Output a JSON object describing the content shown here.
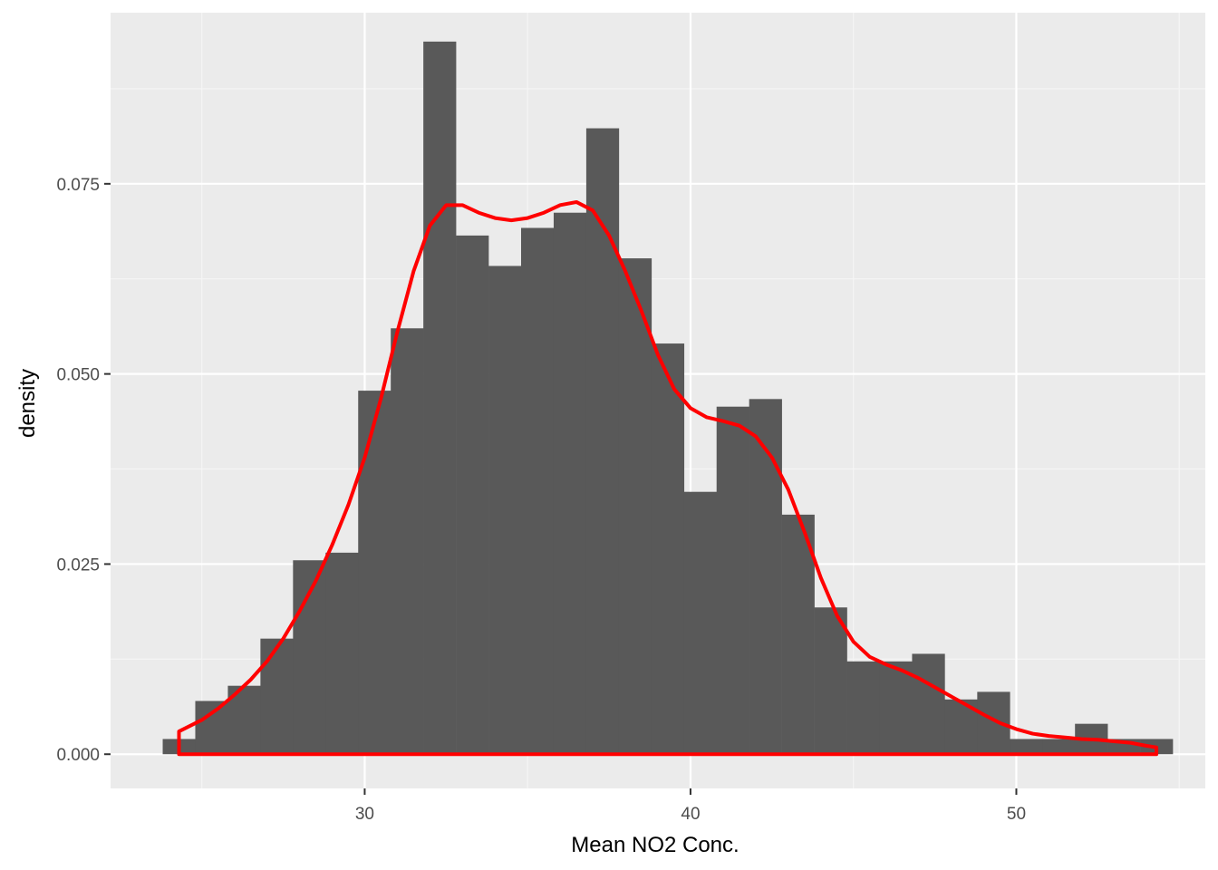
{
  "chart_data": {
    "type": "bar",
    "overlay": "density-line",
    "xlabel": "Mean NO2 Conc.",
    "ylabel": "density",
    "xlim": [
      22.2,
      55.8
    ],
    "ylim": [
      -0.0045,
      0.0975
    ],
    "x_ticks": [
      30,
      40,
      50
    ],
    "x_tick_labels": [
      "30",
      "40",
      "50"
    ],
    "x_minor_ticks": [
      25,
      35,
      45,
      55
    ],
    "y_ticks": [
      0.0,
      0.025,
      0.05,
      0.075
    ],
    "y_tick_labels": [
      "0.000",
      "0.025",
      "0.050",
      "0.075"
    ],
    "y_minor_ticks": [
      0.0125,
      0.0375,
      0.0625,
      0.0875
    ],
    "bin_width": 1.0,
    "bins": [
      {
        "x": 24.3,
        "density": 0.002
      },
      {
        "x": 25.3,
        "density": 0.007
      },
      {
        "x": 26.3,
        "density": 0.009
      },
      {
        "x": 27.3,
        "density": 0.0152
      },
      {
        "x": 28.3,
        "density": 0.0255
      },
      {
        "x": 29.3,
        "density": 0.0265
      },
      {
        "x": 30.3,
        "density": 0.0478
      },
      {
        "x": 31.3,
        "density": 0.056
      },
      {
        "x": 32.3,
        "density": 0.0937
      },
      {
        "x": 33.3,
        "density": 0.0682
      },
      {
        "x": 34.3,
        "density": 0.0642
      },
      {
        "x": 35.3,
        "density": 0.0692
      },
      {
        "x": 36.3,
        "density": 0.0712
      },
      {
        "x": 37.3,
        "density": 0.0823
      },
      {
        "x": 38.3,
        "density": 0.0652
      },
      {
        "x": 39.3,
        "density": 0.054
      },
      {
        "x": 40.3,
        "density": 0.0345
      },
      {
        "x": 41.3,
        "density": 0.0457
      },
      {
        "x": 42.3,
        "density": 0.0467
      },
      {
        "x": 43.3,
        "density": 0.0315
      },
      {
        "x": 44.3,
        "density": 0.0193
      },
      {
        "x": 45.3,
        "density": 0.0122
      },
      {
        "x": 46.3,
        "density": 0.0122
      },
      {
        "x": 47.3,
        "density": 0.0132
      },
      {
        "x": 48.3,
        "density": 0.0072
      },
      {
        "x": 49.3,
        "density": 0.0082
      },
      {
        "x": 50.3,
        "density": 0.002
      },
      {
        "x": 51.3,
        "density": 0.002
      },
      {
        "x": 52.3,
        "density": 0.004
      },
      {
        "x": 53.3,
        "density": 0.002
      },
      {
        "x": 54.3,
        "density": 0.002
      }
    ],
    "density_curve": {
      "x": [
        24.3,
        25.0,
        25.5,
        26.0,
        26.5,
        27.0,
        27.5,
        28.0,
        28.5,
        29.0,
        29.5,
        30.0,
        30.5,
        31.0,
        31.5,
        32.0,
        32.5,
        33.0,
        33.5,
        34.0,
        34.5,
        35.0,
        35.5,
        36.0,
        36.5,
        37.0,
        37.5,
        38.0,
        38.5,
        39.0,
        39.5,
        40.0,
        40.5,
        41.0,
        41.5,
        42.0,
        42.5,
        43.0,
        43.5,
        44.0,
        44.5,
        45.0,
        45.5,
        46.0,
        46.5,
        47.0,
        47.5,
        48.0,
        48.5,
        49.0,
        49.5,
        50.0,
        50.5,
        51.0,
        51.5,
        52.0,
        52.5,
        53.0,
        53.5,
        54.0,
        54.3
      ],
      "y": [
        0.003,
        0.0045,
        0.006,
        0.0078,
        0.0098,
        0.0122,
        0.0152,
        0.0188,
        0.0228,
        0.0275,
        0.0328,
        0.039,
        0.0468,
        0.0555,
        0.0635,
        0.0695,
        0.0722,
        0.0722,
        0.0712,
        0.0705,
        0.0702,
        0.0705,
        0.0712,
        0.0722,
        0.0726,
        0.0715,
        0.0682,
        0.0635,
        0.0582,
        0.0525,
        0.048,
        0.0455,
        0.0443,
        0.0438,
        0.0432,
        0.0418,
        0.039,
        0.0348,
        0.0292,
        0.0232,
        0.0182,
        0.0148,
        0.0128,
        0.0118,
        0.011,
        0.01,
        0.0088,
        0.0076,
        0.0064,
        0.0052,
        0.0041,
        0.0033,
        0.0027,
        0.0024,
        0.0022,
        0.002,
        0.0019,
        0.0017,
        0.0015,
        0.0011,
        0.0009
      ]
    },
    "colors": {
      "panel_background": "#ebebeb",
      "grid_major": "#ffffff",
      "grid_minor": "#f5f5f5",
      "bar_fill": "#595959",
      "density_line": "#ff0000",
      "tick_text": "#4d4d4d",
      "tick_mark": "#333333"
    },
    "grid": true,
    "legend": "none"
  }
}
